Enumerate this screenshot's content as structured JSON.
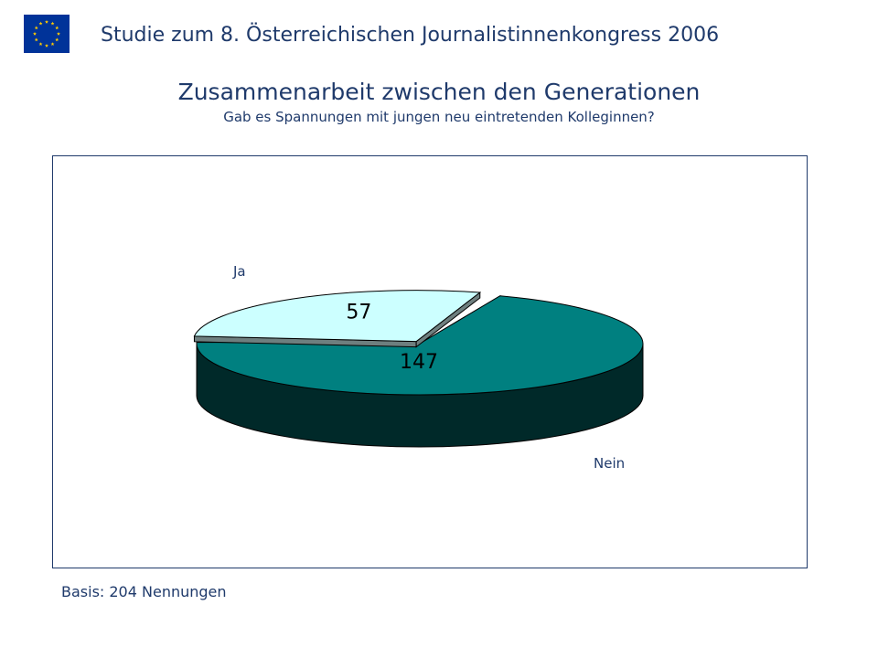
{
  "header": {
    "title": "Studie zum 8. Österreichischen Journalistinnenkongress  2006"
  },
  "colors": {
    "text": "#1f3a6b",
    "flag_blue": "#003399",
    "flag_star": "#ffcc00"
  },
  "icons": {
    "flag": "eu-flag-icon"
  },
  "chart_data": {
    "type": "pie",
    "title": "Zusammenarbeit zwischen den Generationen",
    "subtitle": "Gab es Spannungen mit jungen neu eintretenden Kolleginnen?",
    "slices": [
      {
        "label": "Ja",
        "value": 57,
        "color": "#ccffff"
      },
      {
        "label": "Nein",
        "value": 147,
        "color": "#008080"
      }
    ],
    "exploded": "Ja",
    "style": "3d",
    "legend": "none",
    "data_labels": "inside",
    "note": "Basis: 204 Nennungen"
  }
}
